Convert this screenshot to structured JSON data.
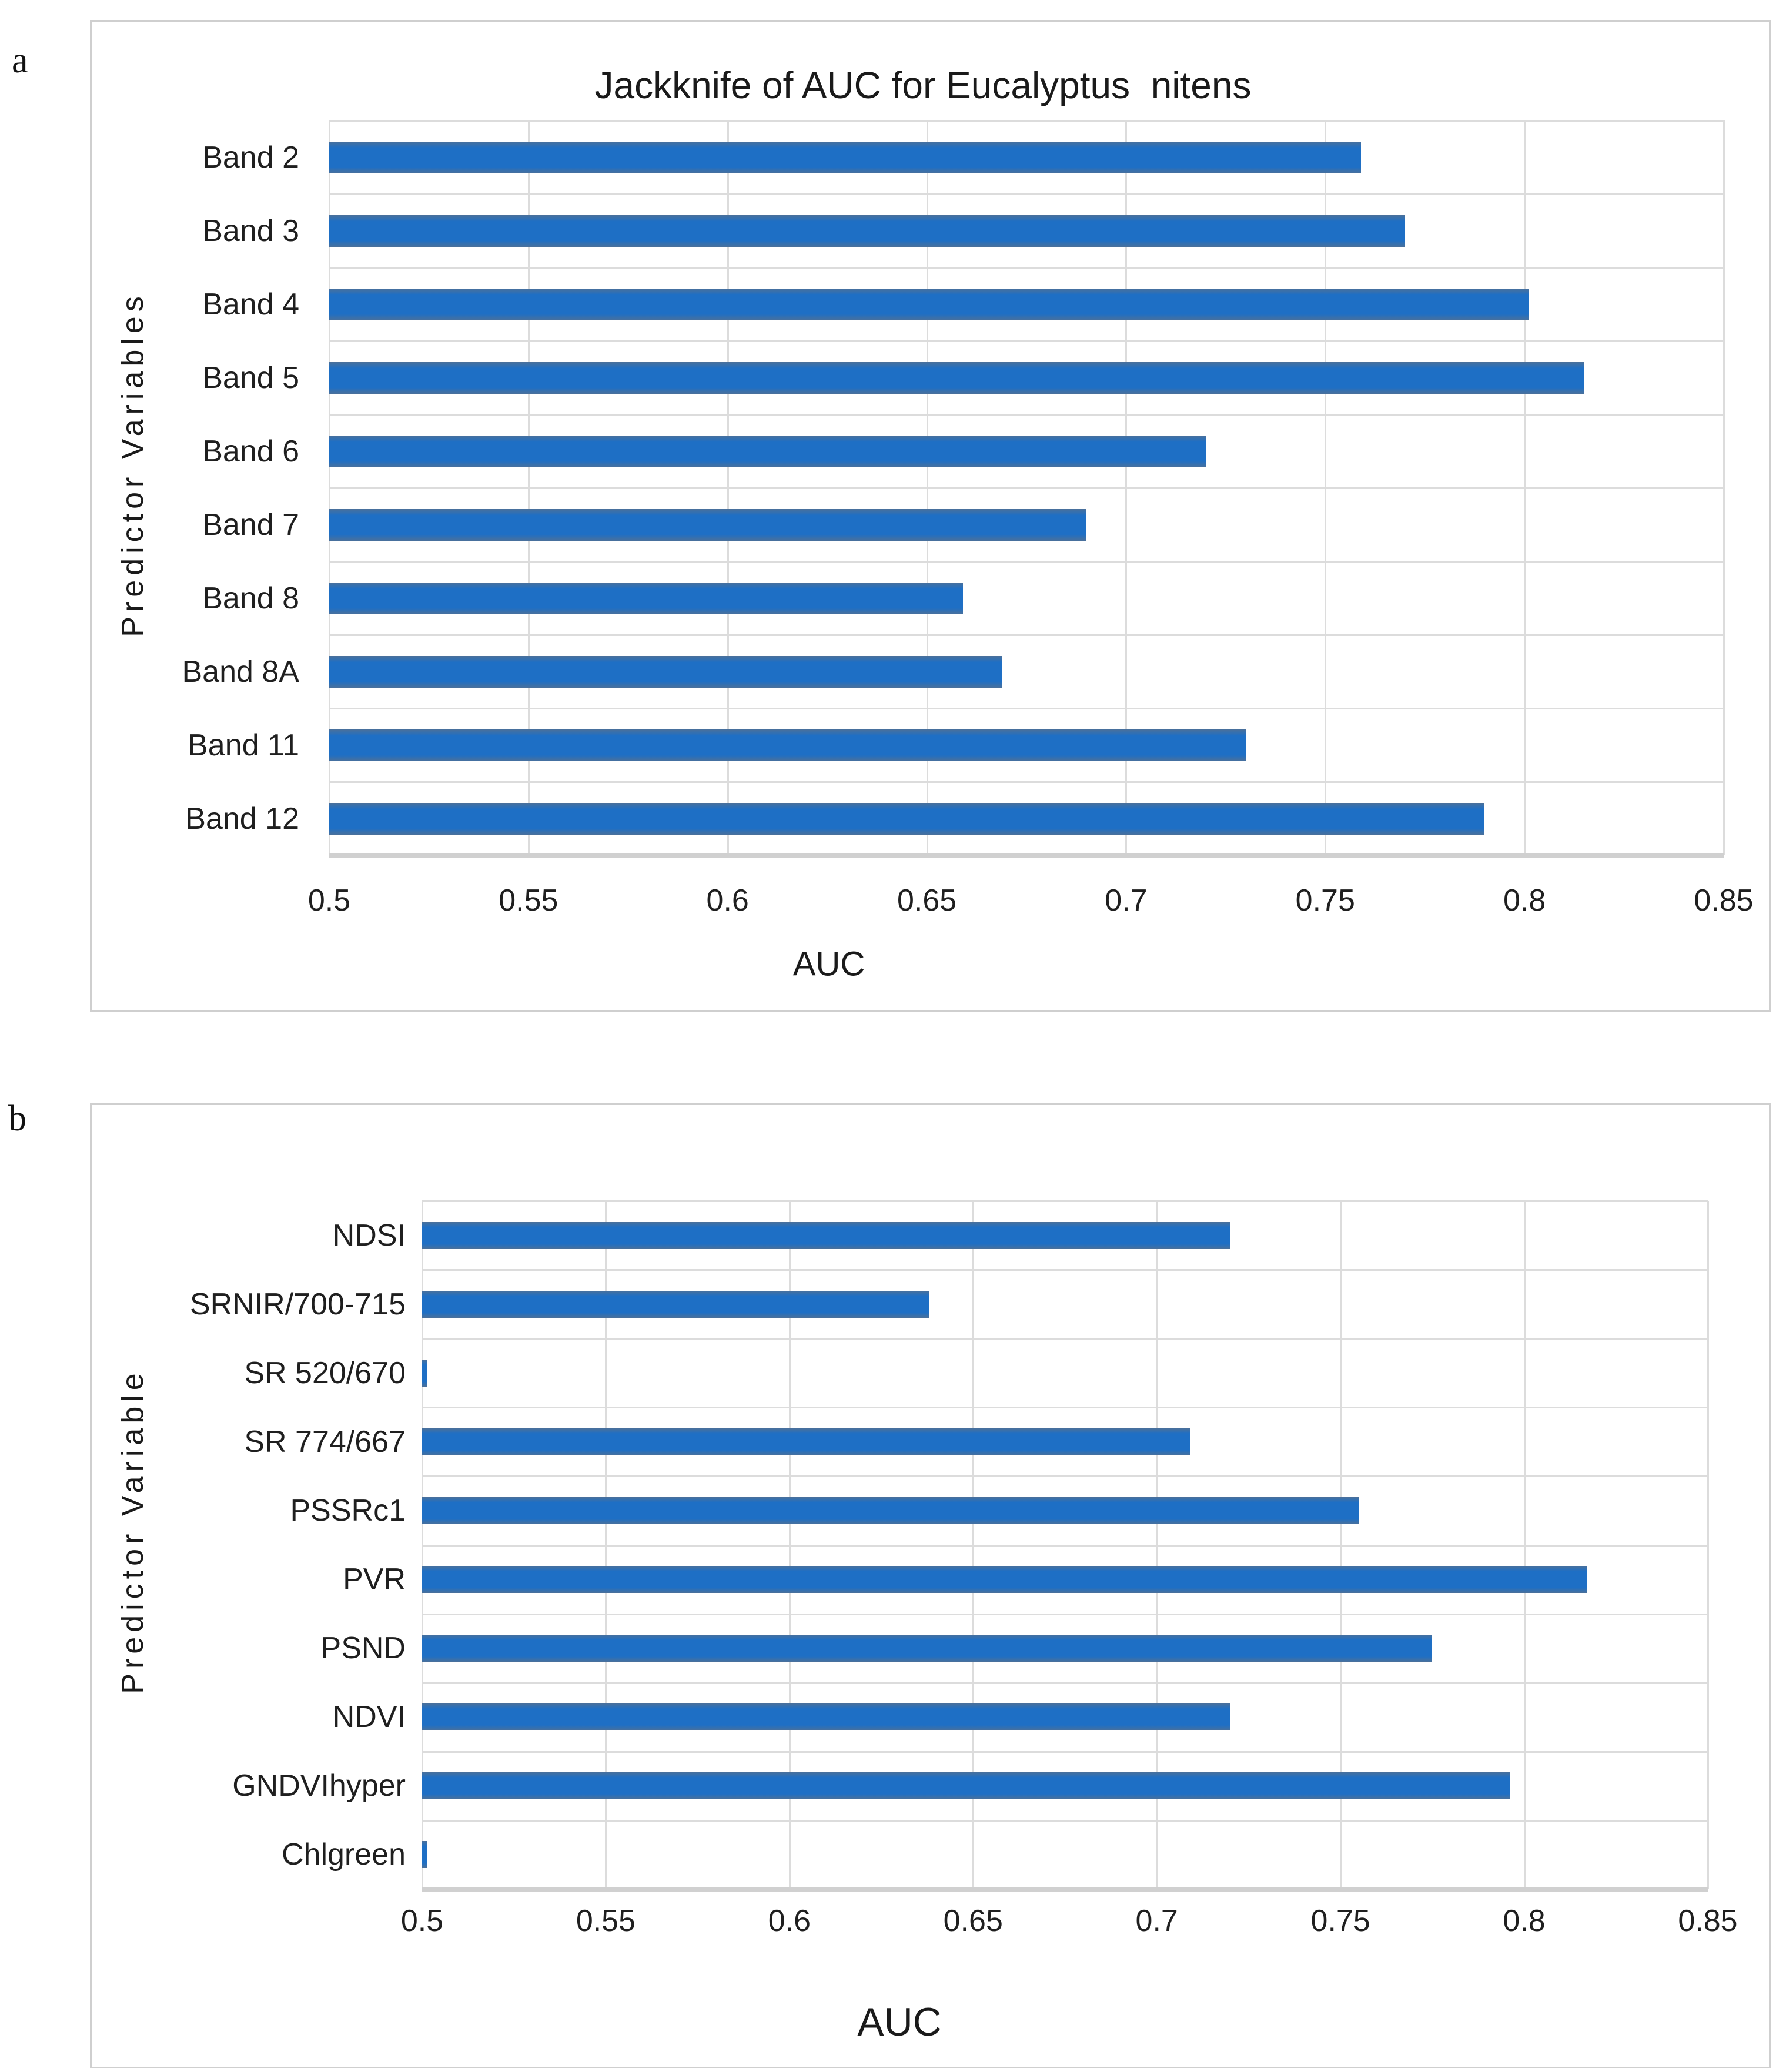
{
  "figure_type": "two-panel horizontal bar chart figure",
  "chart_data": [
    {
      "type": "bar",
      "orientation": "horizontal",
      "panel_label": "a",
      "title": "Jackknife of AUC for Eucalyptus  nitens",
      "xlabel": "AUC",
      "ylabel": "Predictor Variables",
      "categories": [
        "Band 2",
        "Band 3",
        "Band 4",
        "Band 5",
        "Band 6",
        "Band 7",
        "Band 8",
        "Band 8A",
        "Band 11",
        "Band 12"
      ],
      "values": [
        0.759,
        0.77,
        0.801,
        0.815,
        0.72,
        0.69,
        0.659,
        0.669,
        0.73,
        0.79
      ],
      "xlim": [
        0.5,
        0.85
      ],
      "xtick_labels": [
        "0.5",
        "0.55",
        "0.6",
        "0.65",
        "0.7",
        "0.75",
        "0.8",
        "0.85"
      ],
      "grid": true,
      "legend": null,
      "bar_color": "#1e6fc5"
    },
    {
      "type": "bar",
      "orientation": "horizontal",
      "panel_label": "b",
      "title": "",
      "xlabel": "AUC",
      "ylabel": "Predictor Variable",
      "categories": [
        "NDSI",
        "SRNIR/700-715",
        "SR 520/670",
        "SR 774/667",
        "PSSRc1",
        "PVR",
        "PSND",
        "NDVI",
        "GNDVIhyper",
        "Chlgreen"
      ],
      "values": [
        0.72,
        0.638,
        0.501,
        0.709,
        0.755,
        0.817,
        0.775,
        0.72,
        0.796,
        0.501
      ],
      "xlim": [
        0.5,
        0.85
      ],
      "xtick_labels": [
        "0.5",
        "0.55",
        "0.6",
        "0.65",
        "0.7",
        "0.75",
        "0.8",
        "0.85"
      ],
      "grid": true,
      "legend": null,
      "bar_color": "#1e6fc5"
    }
  ],
  "colors": {
    "bar_fill": "#1e6fc5",
    "bar_edge_shade": "#4a709b",
    "gridline": "#dcdcdc",
    "axis_line": "#d0d0d0",
    "panel_border": "#cfcfcf",
    "text": "#1f1f1f",
    "background": "#ffffff"
  }
}
